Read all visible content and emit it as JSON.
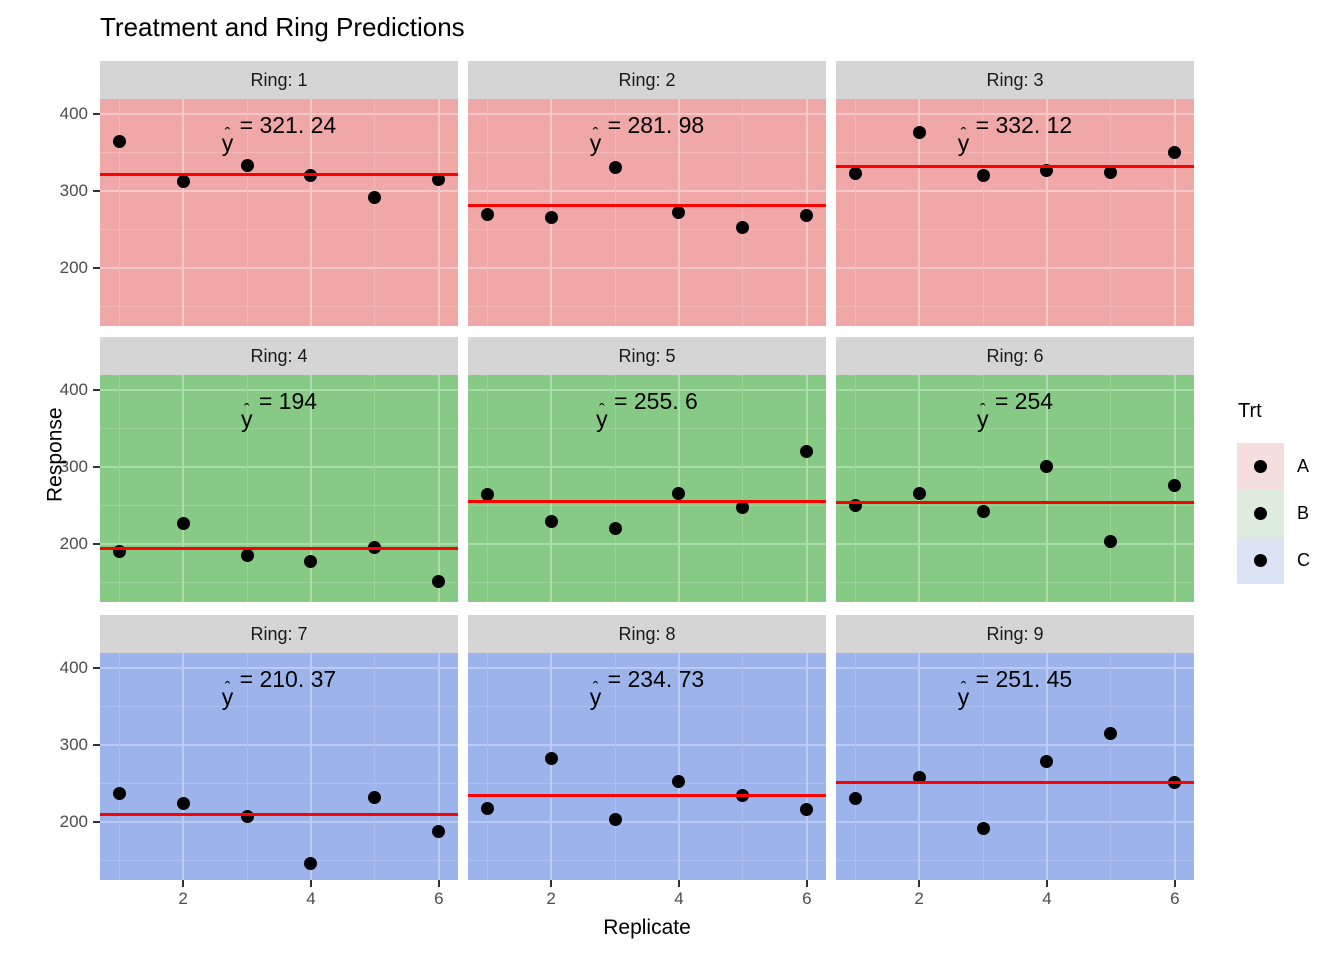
{
  "title": "Treatment and Ring Predictions",
  "axes": {
    "x": {
      "label": "Replicate",
      "ticks": [
        2,
        4,
        6
      ],
      "minor": [
        1,
        3,
        5
      ],
      "domain": [
        0.7,
        6.3
      ]
    },
    "y": {
      "label": "Response",
      "ticks": [
        200,
        300,
        400
      ],
      "minor": [
        150,
        250,
        350
      ],
      "domain": [
        125,
        420
      ]
    }
  },
  "legend": {
    "title": "Trt",
    "items": [
      {
        "label": "A",
        "key_fill": "#F4DEDE"
      },
      {
        "label": "B",
        "key_fill": "#DEEDDE"
      },
      {
        "label": "C",
        "key_fill": "#DBE3F4"
      }
    ]
  },
  "colors": {
    "prediction_line": "#FF0000",
    "point": "#000000",
    "strip_background": "#D5D5D5",
    "strip_text": "#1A1A1A",
    "tick_text": "#4D4D4D",
    "facet_fills": {
      "A": {
        "panel": "#EFA7A7",
        "grid_major": "#F7C8C8",
        "grid_minor": "#F3B7B7"
      },
      "B": {
        "panel": "#86CA86",
        "grid_major": "#ACDCAC",
        "grid_minor": "#9AD49A"
      },
      "C": {
        "panel": "#9CB4EB",
        "grid_major": "#BCCBF2",
        "grid_minor": "#ACBFEF"
      }
    }
  },
  "chart_data": {
    "type": "scatter",
    "title": "Treatment and Ring Predictions",
    "xlabel": "Replicate",
    "ylabel": "Response",
    "facet_variable": "Ring",
    "annotation_prefix": "y =",
    "facets": [
      {
        "id": 1,
        "strip_label": "Ring: 1",
        "trt": "A",
        "pred": 321.24,
        "pred_text": "321. 24",
        "x": [
          1,
          2,
          3,
          4,
          5,
          6
        ],
        "y": [
          365,
          313,
          334,
          321,
          292,
          316
        ]
      },
      {
        "id": 2,
        "strip_label": "Ring: 2",
        "trt": "A",
        "pred": 281.98,
        "pred_text": "281. 98",
        "x": [
          1,
          2,
          3,
          4,
          5,
          6
        ],
        "y": [
          270,
          266,
          331,
          272,
          253,
          269
        ]
      },
      {
        "id": 3,
        "strip_label": "Ring: 3",
        "trt": "A",
        "pred": 332.12,
        "pred_text": "332. 12",
        "x": [
          1,
          2,
          3,
          4,
          5,
          6
        ],
        "y": [
          323,
          376,
          320,
          327,
          324,
          351
        ]
      },
      {
        "id": 4,
        "strip_label": "Ring: 4",
        "trt": "B",
        "pred": 194,
        "pred_text": "194",
        "x": [
          1,
          2,
          3,
          4,
          5,
          6
        ],
        "y": [
          190,
          227,
          186,
          177,
          196,
          152
        ]
      },
      {
        "id": 5,
        "strip_label": "Ring: 5",
        "trt": "B",
        "pred": 255.6,
        "pred_text": "255. 6",
        "x": [
          1,
          2,
          3,
          4,
          5,
          6
        ],
        "y": [
          265,
          230,
          221,
          266,
          248,
          320
        ]
      },
      {
        "id": 6,
        "strip_label": "Ring: 6",
        "trt": "B",
        "pred": 254,
        "pred_text": "254",
        "x": [
          1,
          2,
          3,
          4,
          5,
          6
        ],
        "y": [
          250,
          266,
          243,
          301,
          203,
          276
        ]
      },
      {
        "id": 7,
        "strip_label": "Ring: 7",
        "trt": "C",
        "pred": 210.37,
        "pred_text": "210. 37",
        "x": [
          1,
          2,
          3,
          4,
          5,
          6
        ],
        "y": [
          237,
          225,
          208,
          146,
          232,
          188
        ]
      },
      {
        "id": 8,
        "strip_label": "Ring: 8",
        "trt": "C",
        "pred": 234.73,
        "pred_text": "234. 73",
        "x": [
          1,
          2,
          3,
          4,
          5,
          6
        ],
        "y": [
          218,
          283,
          203,
          253,
          235,
          217
        ]
      },
      {
        "id": 9,
        "strip_label": "Ring: 9",
        "trt": "C",
        "pred": 251.45,
        "pred_text": "251. 45",
        "x": [
          1,
          2,
          3,
          4,
          5,
          6
        ],
        "y": [
          231,
          258,
          192,
          279,
          315,
          252
        ]
      }
    ]
  }
}
